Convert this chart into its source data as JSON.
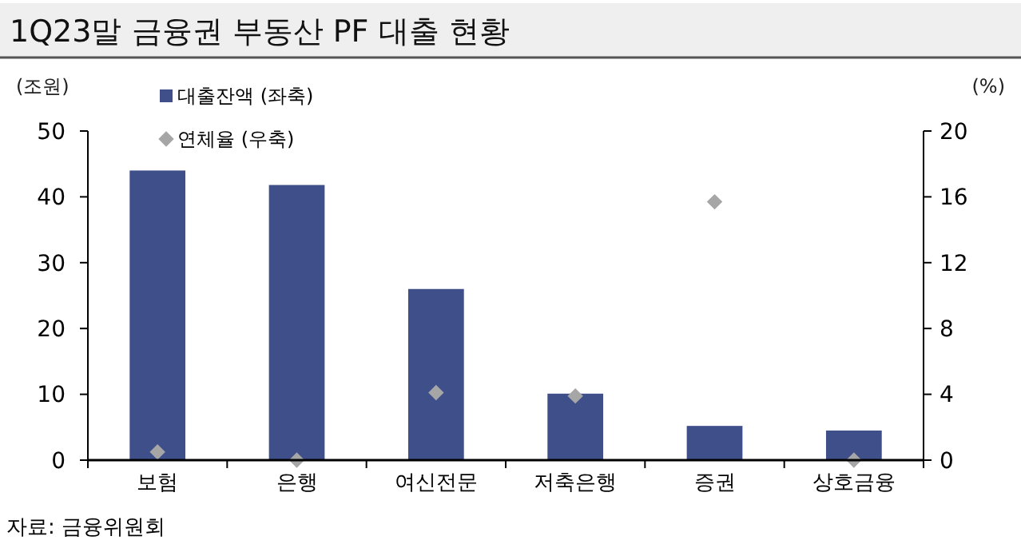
{
  "chart_data": {
    "type": "bar",
    "title": "1Q23말 금융권 부동산 PF 대출 현황",
    "ylabel": "(조원)",
    "y2label": "(%)",
    "categories": [
      "보험",
      "은행",
      "여신전문",
      "저축은행",
      "증권",
      "상호금융"
    ],
    "series": [
      {
        "name": "대출잔액 (좌축)",
        "color": "#3f4f8a",
        "values": [
          44,
          41.8,
          26,
          10.1,
          5.2,
          4.5
        ]
      },
      {
        "name": "연체율 (우축)",
        "type": "scatter",
        "axis": "y2",
        "marker": "diamond",
        "color": "#a6a6a6",
        "values": [
          0.5,
          0,
          4.1,
          3.9,
          15.7,
          0
        ]
      }
    ],
    "ylim": [
      0,
      50
    ],
    "yticks": [
      0,
      10,
      20,
      30,
      40,
      50
    ],
    "y2lim": [
      0,
      20
    ],
    "y2ticks": [
      0,
      4,
      8,
      12,
      16,
      20
    ],
    "legend": "top left",
    "grid": false,
    "annotations": [
      "자료: 금융위원회"
    ]
  }
}
